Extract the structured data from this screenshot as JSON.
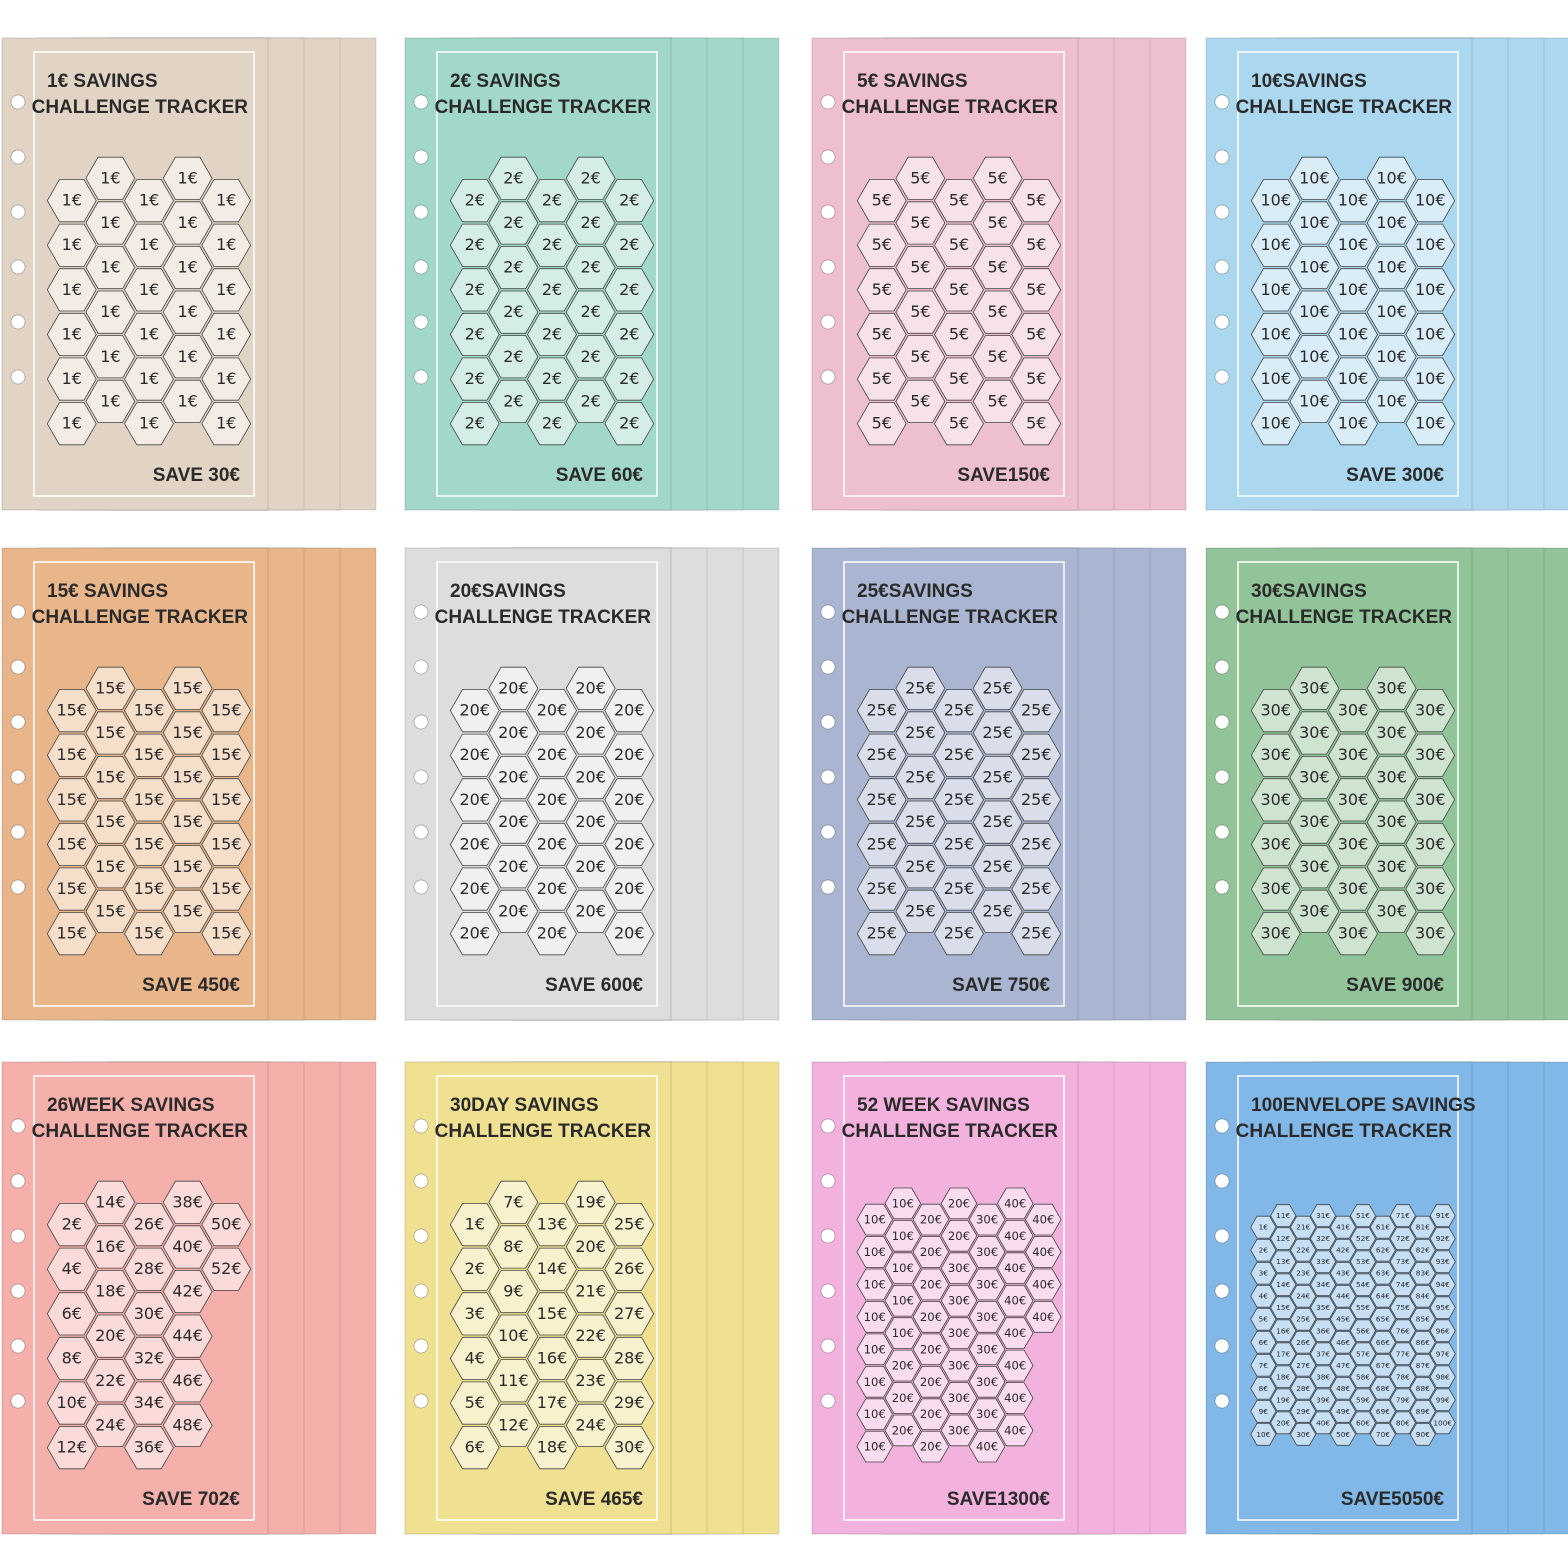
{
  "cards": [
    {
      "title": "1€ SAVINGS",
      "subtitle": "CHALLENGE TRACKER",
      "total": "SAVE 30€",
      "color": "#e2d4c5",
      "cells": [
        "1€",
        "1€",
        "1€",
        "1€",
        "1€",
        "1€",
        "1€",
        "1€",
        "1€",
        "1€",
        "1€",
        "1€",
        "1€",
        "1€",
        "1€",
        "1€",
        "1€",
        "1€",
        "1€",
        "1€",
        "1€",
        "1€",
        "1€",
        "1€",
        "1€",
        "1€",
        "1€",
        "1€",
        "1€",
        "1€"
      ]
    },
    {
      "title": "2€ SAVINGS",
      "subtitle": "CHALLENGE TRACKER",
      "total": "SAVE 60€",
      "color": "#a2d8ca",
      "cells": [
        "2€",
        "2€",
        "2€",
        "2€",
        "2€",
        "2€",
        "2€",
        "2€",
        "2€",
        "2€",
        "2€",
        "2€",
        "2€",
        "2€",
        "2€",
        "2€",
        "2€",
        "2€",
        "2€",
        "2€",
        "2€",
        "2€",
        "2€",
        "2€",
        "2€",
        "2€",
        "2€",
        "2€",
        "2€",
        "2€"
      ]
    },
    {
      "title": "5€ SAVINGS",
      "subtitle": "CHALLENGE TRACKER",
      "total": "SAVE150€",
      "color": "#eebfcc",
      "cells": [
        "5€",
        "5€",
        "5€",
        "5€",
        "5€",
        "5€",
        "5€",
        "5€",
        "5€",
        "5€",
        "5€",
        "5€",
        "5€",
        "5€",
        "5€",
        "5€",
        "5€",
        "5€",
        "5€",
        "5€",
        "5€",
        "5€",
        "5€",
        "5€",
        "5€",
        "5€",
        "5€",
        "5€",
        "5€",
        "5€"
      ]
    },
    {
      "title": "10€SAVINGS",
      "subtitle": "CHALLENGE TRACKER",
      "total": "SAVE 300€",
      "color": "#abd7ef",
      "cells": [
        "10€",
        "10€",
        "10€",
        "10€",
        "10€",
        "10€",
        "10€",
        "10€",
        "10€",
        "10€",
        "10€",
        "10€",
        "10€",
        "10€",
        "10€",
        "10€",
        "10€",
        "10€",
        "10€",
        "10€",
        "10€",
        "10€",
        "10€",
        "10€",
        "10€",
        "10€",
        "10€",
        "10€",
        "10€",
        "10€"
      ]
    },
    {
      "title": "15€ SAVINGS",
      "subtitle": "CHALLENGE TRACKER",
      "total": "SAVE 450€",
      "color": "#e9b68b",
      "cells": [
        "15€",
        "15€",
        "15€",
        "15€",
        "15€",
        "15€",
        "15€",
        "15€",
        "15€",
        "15€",
        "15€",
        "15€",
        "15€",
        "15€",
        "15€",
        "15€",
        "15€",
        "15€",
        "15€",
        "15€",
        "15€",
        "15€",
        "15€",
        "15€",
        "15€",
        "15€",
        "15€",
        "15€",
        "15€",
        "15€"
      ]
    },
    {
      "title": "20€SAVINGS",
      "subtitle": "CHALLENGE TRACKER",
      "total": "SAVE 600€",
      "color": "#dddddf",
      "cells": [
        "20€",
        "20€",
        "20€",
        "20€",
        "20€",
        "20€",
        "20€",
        "20€",
        "20€",
        "20€",
        "20€",
        "20€",
        "20€",
        "20€",
        "20€",
        "20€",
        "20€",
        "20€",
        "20€",
        "20€",
        "20€",
        "20€",
        "20€",
        "20€",
        "20€",
        "20€",
        "20€",
        "20€",
        "20€",
        "20€"
      ]
    },
    {
      "title": "25€SAVINGS",
      "subtitle": "CHALLENGE TRACKER",
      "total": "SAVE 750€",
      "color": "#aab6d1",
      "cells": [
        "25€",
        "25€",
        "25€",
        "25€",
        "25€",
        "25€",
        "25€",
        "25€",
        "25€",
        "25€",
        "25€",
        "25€",
        "25€",
        "25€",
        "25€",
        "25€",
        "25€",
        "25€",
        "25€",
        "25€",
        "25€",
        "25€",
        "25€",
        "25€",
        "25€",
        "25€",
        "25€",
        "25€",
        "25€",
        "25€"
      ]
    },
    {
      "title": "30€SAVINGS",
      "subtitle": "CHALLENGE TRACKER",
      "total": "SAVE 900€",
      "color": "#92c499",
      "cells": [
        "30€",
        "30€",
        "30€",
        "30€",
        "30€",
        "30€",
        "30€",
        "30€",
        "30€",
        "30€",
        "30€",
        "30€",
        "30€",
        "30€",
        "30€",
        "30€",
        "30€",
        "30€",
        "30€",
        "30€",
        "30€",
        "30€",
        "30€",
        "30€",
        "30€",
        "30€",
        "30€",
        "30€",
        "30€",
        "30€"
      ]
    },
    {
      "title": "26WEEK SAVINGS",
      "subtitle": "CHALLENGE TRACKER",
      "total": "SAVE 702€",
      "color": "#f5b0ac",
      "cells": [
        "2€",
        "4€",
        "6€",
        "8€",
        "10€",
        "12€",
        "14€",
        "16€",
        "18€",
        "20€",
        "22€",
        "24€",
        "26€",
        "28€",
        "30€",
        "32€",
        "34€",
        "36€",
        "38€",
        "40€",
        "42€",
        "44€",
        "46€",
        "48€",
        "50€",
        "52€"
      ]
    },
    {
      "title": "30DAY SAVINGS",
      "subtitle": "CHALLENGE TRACKER",
      "total": "SAVE 465€",
      "color": "#f0e192",
      "cells": [
        "1€",
        "2€",
        "3€",
        "4€",
        "5€",
        "6€",
        "7€",
        "8€",
        "9€",
        "10€",
        "11€",
        "12€",
        "13€",
        "14€",
        "15€",
        "16€",
        "17€",
        "18€",
        "19€",
        "20€",
        "21€",
        "22€",
        "23€",
        "24€",
        "25€",
        "26€",
        "27€",
        "28€",
        "29€",
        "30€"
      ]
    },
    {
      "title": "52 WEEK SAVINGS",
      "subtitle": "CHALLENGE TRACKER",
      "total": "SAVE1300€",
      "color": "#f3b1de",
      "cells": [
        "10€",
        "10€",
        "10€",
        "10€",
        "10€",
        "10€",
        "10€",
        "10€",
        "10€",
        "10€",
        "10€",
        "10€",
        "10€",
        "20€",
        "20€",
        "20€",
        "20€",
        "20€",
        "20€",
        "20€",
        "20€",
        "20€",
        "20€",
        "20€",
        "20€",
        "20€",
        "30€",
        "30€",
        "30€",
        "30€",
        "30€",
        "30€",
        "30€",
        "30€",
        "30€",
        "30€",
        "30€",
        "30€",
        "30€",
        "40€",
        "40€",
        "40€",
        "40€",
        "40€",
        "40€",
        "40€",
        "40€",
        "40€",
        "40€",
        "40€",
        "40€",
        "40€"
      ]
    },
    {
      "title": "100ENVELOPE SAVINGS",
      "subtitle": "CHALLENGE TRACKER",
      "total": "SAVE5050€",
      "color": "#82b8e7",
      "cells": [
        "1€",
        "2€",
        "3€",
        "4€",
        "5€",
        "6€",
        "7€",
        "8€",
        "9€",
        "10€",
        "11€",
        "12€",
        "13€",
        "14€",
        "15€",
        "16€",
        "17€",
        "18€",
        "19€",
        "20€",
        "21€",
        "22€",
        "23€",
        "24€",
        "25€",
        "26€",
        "27€",
        "28€",
        "29€",
        "30€",
        "31€",
        "32€",
        "33€",
        "34€",
        "35€",
        "36€",
        "37€",
        "38€",
        "39€",
        "40€",
        "41€",
        "42€",
        "43€",
        "44€",
        "45€",
        "46€",
        "47€",
        "48€",
        "49€",
        "50€",
        "51€",
        "52€",
        "53€",
        "54€",
        "55€",
        "56€",
        "57€",
        "58€",
        "59€",
        "60€",
        "61€",
        "62€",
        "63€",
        "64€",
        "65€",
        "66€",
        "67€",
        "68€",
        "69€",
        "70€",
        "71€",
        "72€",
        "73€",
        "74€",
        "75€",
        "76€",
        "77€",
        "78€",
        "79€",
        "80€",
        "81€",
        "82€",
        "83€",
        "84€",
        "85€",
        "86€",
        "87€",
        "88€",
        "89€",
        "90€",
        "91€",
        "92€",
        "93€",
        "94€",
        "95€",
        "96€",
        "97€",
        "98€",
        "99€",
        "100€"
      ]
    }
  ]
}
